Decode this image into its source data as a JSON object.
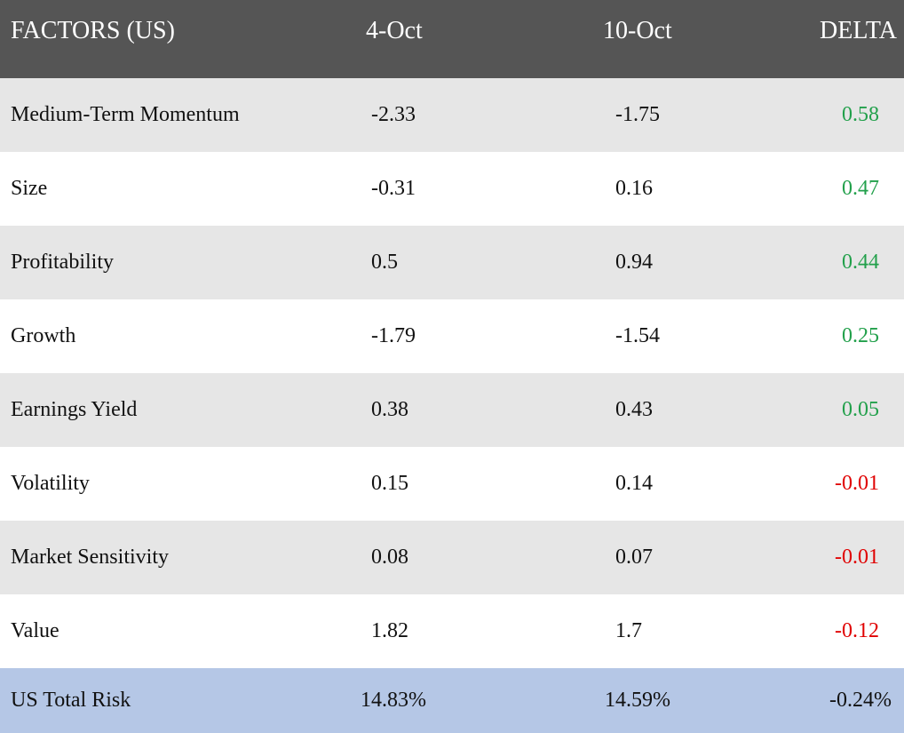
{
  "header": {
    "factors_label": "FACTORS (US)",
    "date1_label": "4-Oct",
    "date2_label": "10-Oct",
    "delta_label": "DELTA"
  },
  "rows": [
    {
      "factor": "Medium-Term Momentum",
      "oct4": "-2.33",
      "oct10": "-1.75",
      "delta": "0.58",
      "direction": "positive"
    },
    {
      "factor": "Size",
      "oct4": "-0.31",
      "oct10": "0.16",
      "delta": "0.47",
      "direction": "positive"
    },
    {
      "factor": "Profitability",
      "oct4": "0.5",
      "oct10": "0.94",
      "delta": "0.44",
      "direction": "positive"
    },
    {
      "factor": "Growth",
      "oct4": "-1.79",
      "oct10": "-1.54",
      "delta": "0.25",
      "direction": "positive"
    },
    {
      "factor": "Earnings Yield",
      "oct4": "0.38",
      "oct10": "0.43",
      "delta": "0.05",
      "direction": "positive"
    },
    {
      "factor": "Volatility",
      "oct4": "0.15",
      "oct10": "0.14",
      "delta": "-0.01",
      "direction": "negative"
    },
    {
      "factor": "Market Sensitivity",
      "oct4": "0.08",
      "oct10": "0.07",
      "delta": "-0.01",
      "direction": "negative"
    },
    {
      "factor": "Value",
      "oct4": "1.82",
      "oct10": "1.7",
      "delta": "-0.12",
      "direction": "negative"
    }
  ],
  "total": {
    "label": "US Total Risk",
    "oct4": "14.83%",
    "oct10": "14.59%",
    "delta": "-0.24%"
  },
  "colors": {
    "header_bg": "#555555",
    "alt_row_bg": "#e6e6e6",
    "total_row_bg": "#b5c7e6",
    "positive": "#22a04b",
    "negative": "#e00000"
  }
}
